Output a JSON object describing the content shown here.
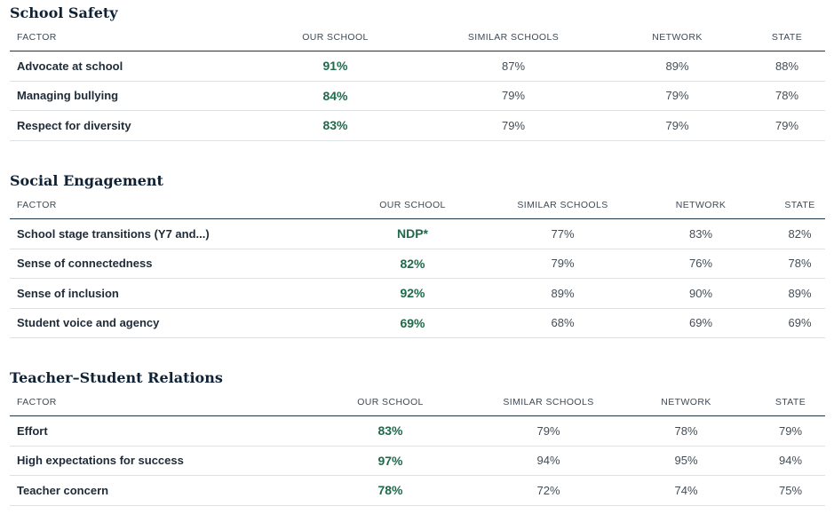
{
  "columns": [
    "FACTOR",
    "OUR SCHOOL",
    "SIMILAR SCHOOLS",
    "NETWORK",
    "STATE"
  ],
  "sections": [
    {
      "title": "School Safety",
      "rows": [
        {
          "factor": "Advocate at school",
          "our": "91%",
          "similar": "87%",
          "network": "89%",
          "state": "88%"
        },
        {
          "factor": "Managing bullying",
          "our": "84%",
          "similar": "79%",
          "network": "79%",
          "state": "78%"
        },
        {
          "factor": "Respect for diversity",
          "our": "83%",
          "similar": "79%",
          "network": "79%",
          "state": "79%"
        }
      ]
    },
    {
      "title": "Social Engagement",
      "rows": [
        {
          "factor": "School stage transitions (Y7 and...)",
          "our": "NDP*",
          "similar": "77%",
          "network": "83%",
          "state": "82%"
        },
        {
          "factor": "Sense of connectedness",
          "our": "82%",
          "similar": "79%",
          "network": "76%",
          "state": "78%"
        },
        {
          "factor": "Sense of inclusion",
          "our": "92%",
          "similar": "89%",
          "network": "90%",
          "state": "89%"
        },
        {
          "factor": "Student voice and agency",
          "our": "69%",
          "similar": "68%",
          "network": "69%",
          "state": "69%"
        }
      ]
    },
    {
      "title": "Teacher–Student Relations",
      "rows": [
        {
          "factor": "Effort",
          "our": "83%",
          "similar": "79%",
          "network": "78%",
          "state": "79%"
        },
        {
          "factor": "High expectations for success",
          "our": "97%",
          "similar": "94%",
          "network": "95%",
          "state": "94%"
        },
        {
          "factor": "Teacher concern",
          "our": "78%",
          "similar": "72%",
          "network": "74%",
          "state": "75%"
        }
      ]
    }
  ]
}
